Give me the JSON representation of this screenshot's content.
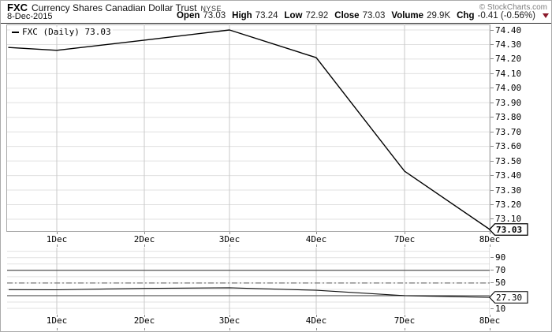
{
  "header": {
    "symbol": "FXC",
    "name": "Currency Shares Canadian Dollar Trust",
    "exchange": "NYSE",
    "date": "8-Dec-2015",
    "copyright": "© StockCharts.com",
    "quote": [
      {
        "label": "Open",
        "value": "73.03"
      },
      {
        "label": "High",
        "value": "73.24"
      },
      {
        "label": "Low",
        "value": "72.92"
      },
      {
        "label": "Close",
        "value": "73.03"
      },
      {
        "label": "Volume",
        "value": "29.9K"
      },
      {
        "label": "Chg",
        "value": "-0.41 (-0.56%)"
      }
    ],
    "chg_icon": "down-triangle",
    "chg_icon_color": "#8B1A2B"
  },
  "chart_data": [
    {
      "type": "line",
      "legend": "FXC (Daily) 73.03",
      "categories": [
        "1Dec",
        "2Dec",
        "3Dec",
        "4Dec",
        "7Dec",
        "8Dec"
      ],
      "values": [
        74.26,
        74.33,
        74.4,
        74.21,
        73.43,
        73.03
      ],
      "edge_value": 74.28,
      "yticks": [
        "74.40",
        "74.30",
        "74.20",
        "74.10",
        "74.00",
        "73.90",
        "73.80",
        "73.70",
        "73.60",
        "73.50",
        "73.40",
        "73.30",
        "73.20",
        "73.10"
      ],
      "ylim": [
        73.02,
        74.44
      ],
      "last_label": "73.03",
      "line_color": "#000000",
      "grid": "on",
      "xlabel": "",
      "ylabel": ""
    },
    {
      "type": "line",
      "categories": [
        "1Dec",
        "2Dec",
        "3Dec",
        "4Dec",
        "7Dec",
        "8Dec"
      ],
      "values": [
        39.3,
        41.5,
        42.5,
        38.5,
        30.0,
        27.3
      ],
      "edge_value": 39.5,
      "yticks": [
        "90",
        "70",
        "50",
        "10"
      ],
      "levels": {
        "overbought": 70,
        "mid": 50,
        "oversold": 30
      },
      "ylim": [
        1,
        106
      ],
      "last_label": "27.30",
      "line_color": "#111111",
      "grid": "on",
      "xlabel": "",
      "ylabel": ""
    }
  ]
}
